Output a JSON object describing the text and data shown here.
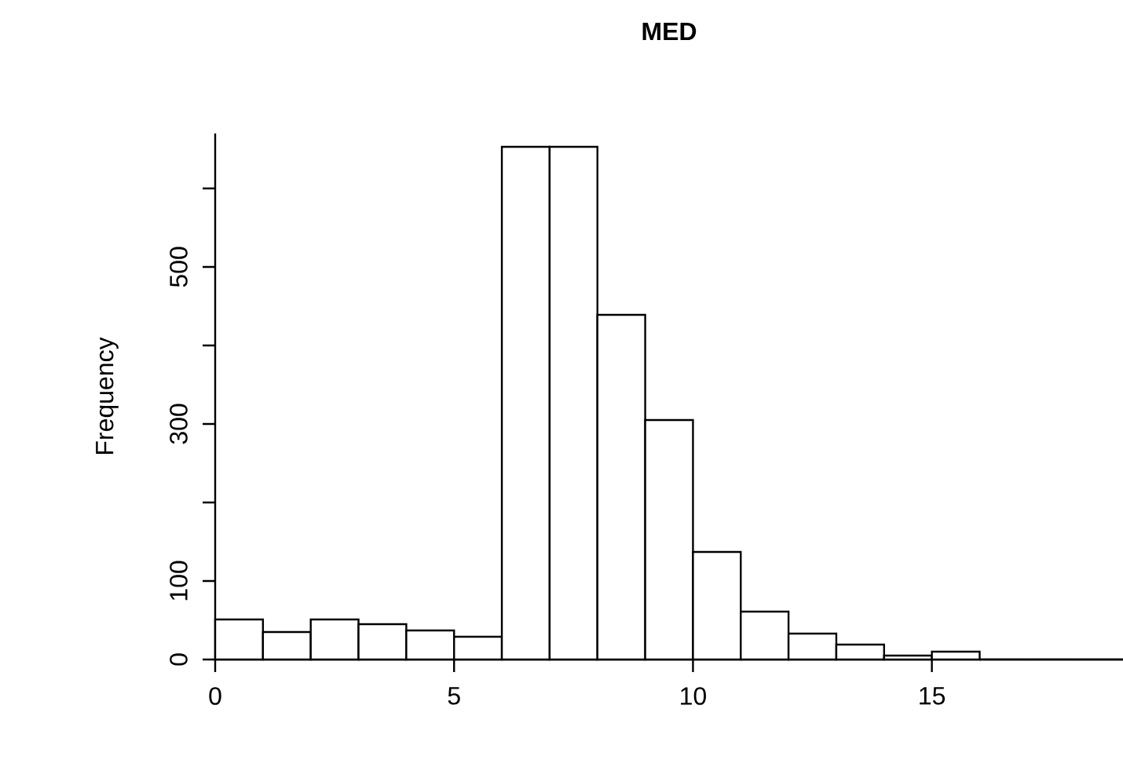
{
  "chart_data": {
    "type": "histogram",
    "title": "MED",
    "ylabel": "Frequency",
    "bins": [
      0,
      1,
      2,
      3,
      4,
      5,
      6,
      7,
      8,
      9,
      10,
      11,
      12,
      13,
      14,
      15,
      16,
      17,
      18,
      19
    ],
    "values": [
      51,
      35,
      51,
      45,
      37,
      29,
      653,
      653,
      439,
      305,
      137,
      61,
      33,
      19,
      5,
      10,
      0,
      0,
      0
    ],
    "color": "#ffffff",
    "xlim": [
      0,
      19
    ],
    "ylim": [
      0,
      670
    ],
    "xticks": [
      0,
      5,
      10,
      15
    ],
    "yticks": [
      0,
      100,
      {
        "value": 200,
        "label": null
      },
      300,
      {
        "value": 400,
        "label": null
      },
      500,
      {
        "value": 600,
        "label": null
      }
    ],
    "grid": false
  }
}
